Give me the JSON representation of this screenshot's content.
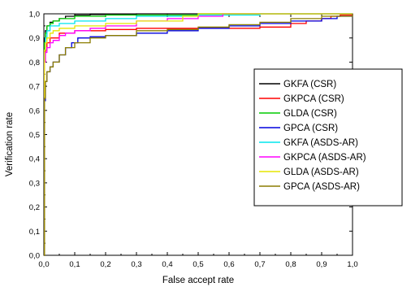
{
  "chart_data": {
    "type": "line",
    "xlabel": "False accept rate",
    "ylabel": "Verification rate",
    "xlim": [
      0,
      1
    ],
    "ylim": [
      0,
      1
    ],
    "xticks": [
      "0,0",
      "0,1",
      "0,2",
      "0,3",
      "0,4",
      "0,5",
      "0,6",
      "0,7",
      "0,8",
      "0,9",
      "1,0"
    ],
    "yticks": [
      "0,0",
      "0,1",
      "0,2",
      "0,3",
      "0,4",
      "0,5",
      "0,6",
      "0,7",
      "0,8",
      "0,9",
      "1,0"
    ],
    "grid": false,
    "legend_position": "right",
    "series": [
      {
        "name": "GKFA (CSR)",
        "color": "#000000",
        "x": [
          0,
          0.002,
          0.005,
          0.01,
          0.02,
          0.03,
          0.05,
          0.07,
          0.1,
          0.15,
          0.2,
          0.3,
          0.5,
          1.0
        ],
        "y": [
          0,
          0.9,
          0.93,
          0.95,
          0.965,
          0.97,
          0.98,
          0.99,
          0.995,
          0.997,
          0.998,
          1.0,
          1.0,
          1.0
        ]
      },
      {
        "name": "GKPCA (CSR)",
        "color": "#ff0000",
        "x": [
          0,
          0.002,
          0.005,
          0.01,
          0.02,
          0.05,
          0.1,
          0.2,
          0.3,
          0.5,
          0.7,
          0.8,
          0.85,
          0.9,
          0.93,
          0.96,
          1.0
        ],
        "y": [
          0,
          0.8,
          0.85,
          0.88,
          0.9,
          0.92,
          0.93,
          0.935,
          0.94,
          0.94,
          0.945,
          0.96,
          0.97,
          0.98,
          0.99,
          0.995,
          1.0
        ]
      },
      {
        "name": "GLDA (CSR)",
        "color": "#00cc00",
        "x": [
          0,
          0.002,
          0.005,
          0.01,
          0.02,
          0.03,
          0.05,
          0.1,
          0.2,
          0.5,
          1.0
        ],
        "y": [
          0,
          0.88,
          0.92,
          0.95,
          0.96,
          0.97,
          0.98,
          0.99,
          0.995,
          1.0,
          1.0
        ]
      },
      {
        "name": "GPCA (CSR)",
        "color": "#0000dd",
        "x": [
          0,
          0.002,
          0.005,
          0.01,
          0.02,
          0.03,
          0.05,
          0.07,
          0.09,
          0.11,
          0.15,
          0.2,
          0.3,
          0.4,
          0.5,
          0.6,
          0.7,
          0.8,
          0.9,
          0.95,
          1.0
        ],
        "y": [
          0,
          0.64,
          0.72,
          0.76,
          0.78,
          0.8,
          0.83,
          0.86,
          0.88,
          0.9,
          0.905,
          0.91,
          0.92,
          0.93,
          0.94,
          0.95,
          0.96,
          0.97,
          0.98,
          0.99,
          1.0
        ]
      },
      {
        "name": "GKFA (ASDS-AR)",
        "color": "#00e5ee",
        "x": [
          0,
          0.002,
          0.005,
          0.01,
          0.02,
          0.05,
          0.1,
          0.2,
          0.3,
          0.5,
          0.7,
          1.0
        ],
        "y": [
          0,
          0.85,
          0.9,
          0.93,
          0.95,
          0.96,
          0.97,
          0.98,
          0.99,
          0.995,
          1.0,
          1.0
        ]
      },
      {
        "name": "GKPCA (ASDS-AR)",
        "color": "#ff00ff",
        "x": [
          0,
          0.002,
          0.005,
          0.01,
          0.02,
          0.03,
          0.05,
          0.07,
          0.1,
          0.15,
          0.2,
          0.3,
          0.4,
          0.5,
          0.58,
          1.0
        ],
        "y": [
          0,
          0.8,
          0.84,
          0.86,
          0.88,
          0.89,
          0.91,
          0.92,
          0.93,
          0.94,
          0.95,
          0.97,
          0.98,
          0.99,
          1.0,
          1.0
        ]
      },
      {
        "name": "GLDA (ASDS-AR)",
        "color": "#e6e600",
        "x": [
          0,
          0.002,
          0.005,
          0.01,
          0.02,
          0.03,
          0.05,
          0.1,
          0.2,
          0.3,
          0.45,
          0.5,
          1.0
        ],
        "y": [
          0,
          0.85,
          0.88,
          0.9,
          0.92,
          0.93,
          0.94,
          0.95,
          0.96,
          0.97,
          0.99,
          1.0,
          1.0
        ]
      },
      {
        "name": "GPCA (ASDS-AR)",
        "color": "#8b7d00",
        "x": [
          0,
          0.002,
          0.005,
          0.01,
          0.02,
          0.03,
          0.05,
          0.07,
          0.1,
          0.15,
          0.2,
          0.3,
          0.4,
          0.5,
          0.6,
          0.7,
          0.8,
          0.9,
          1.0
        ],
        "y": [
          0,
          0.65,
          0.72,
          0.76,
          0.78,
          0.8,
          0.83,
          0.86,
          0.88,
          0.9,
          0.91,
          0.93,
          0.935,
          0.945,
          0.955,
          0.965,
          0.98,
          0.99,
          1.0
        ]
      }
    ]
  }
}
